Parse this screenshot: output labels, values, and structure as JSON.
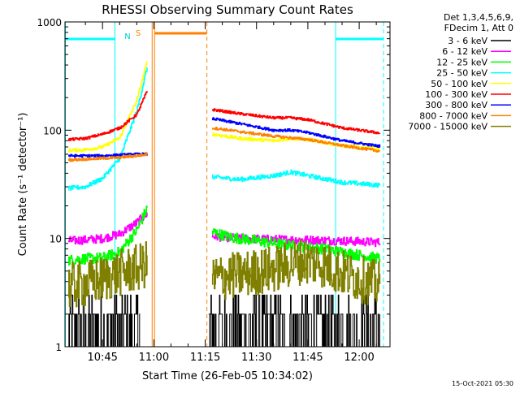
{
  "chart_data": {
    "type": "line",
    "title": "RHESSI Observing Summary Count Rates",
    "xlabel": "Start Time (26-Feb-05 10:34:02)",
    "ylabel": "Count Rate (s⁻¹ detector⁻¹)",
    "yscale": "log",
    "ylim": [
      1,
      1000
    ],
    "xlim": [
      "10:34:02",
      "12:09:00"
    ],
    "y_ticks": [
      "1",
      "10",
      "100",
      "1000"
    ],
    "x_ticks": [
      {
        "label": "10:45",
        "t": 45
      },
      {
        "label": "11:00",
        "t": 60
      },
      {
        "label": "11:15",
        "t": 75
      },
      {
        "label": "11:30",
        "t": 90
      },
      {
        "label": "11:45",
        "t": 105
      },
      {
        "label": "12:00",
        "t": 120
      }
    ],
    "legend_header": [
      "Det 1,3,4,5,6,9,",
      "FDecim 1, Att 0"
    ],
    "legend_position": "top-right, outside plot",
    "flag_labels": {
      "night": "N",
      "saa": "S"
    },
    "flags": {
      "night": [
        [
          34.0,
          48.5
        ],
        [
          113.0,
          127.0
        ]
      ],
      "saa_top": [
        [
          60.2,
          75.5
        ]
      ],
      "cyan_verticals": [
        34.0,
        48.5,
        113.0
      ],
      "cyan_dashed": [
        48.5,
        127.0
      ],
      "orange_verticals": [
        59.5,
        60.2
      ],
      "orange_dashed": [
        75.5
      ]
    },
    "timestamp": "15-Oct-2021 05:30",
    "series": [
      {
        "name": "3 - 6 keV",
        "color": "#000000",
        "segments": [
          {
            "t": [
              35,
              40,
              45,
              50,
              56
            ],
            "y": [
              1.8,
              1.8,
              1.8,
              1.8,
              1.8
            ],
            "noise": 0.28
          },
          {
            "t": [
              76,
              85,
              95,
              105,
              115,
              126
            ],
            "y": [
              1.8,
              1.8,
              2.0,
              2.0,
              1.9,
              1.8
            ],
            "noise": 0.28
          }
        ]
      },
      {
        "name": "6 - 12 keV",
        "color": "#ff00ff",
        "segments": [
          {
            "t": [
              35,
              40,
              45,
              50,
              55,
              58
            ],
            "y": [
              9.5,
              9.7,
              10,
              11,
              14,
              17
            ],
            "noise": 0.04
          },
          {
            "t": [
              77,
              85,
              95,
              105,
              115,
              126
            ],
            "y": [
              10.5,
              10,
              9.8,
              9.7,
              9.5,
              9.2
            ],
            "noise": 0.04
          }
        ]
      },
      {
        "name": "12 - 25 keV",
        "color": "#00ff00",
        "segments": [
          {
            "t": [
              35,
              40,
              45,
              50,
              55,
              58
            ],
            "y": [
              6.3,
              6.5,
              6.6,
              7.5,
              12,
              19
            ],
            "noise": 0.05
          },
          {
            "t": [
              77,
              82,
              90,
              100,
              110,
              118,
              126
            ],
            "y": [
              11.5,
              10.3,
              9.5,
              8.6,
              8,
              7.2,
              6.5
            ],
            "noise": 0.05
          }
        ]
      },
      {
        "name": "25 - 50 keV",
        "color": "#00ffff",
        "segments": [
          {
            "t": [
              35,
              40,
              45,
              50,
              55,
              58
            ],
            "y": [
              29,
              30,
              36,
              55,
              150,
              380
            ],
            "noise": 0.02
          },
          {
            "t": [
              77,
              85,
              95,
              100,
              105,
              115,
              126
            ],
            "y": [
              37,
              35,
              38,
              41,
              38,
              33,
              31
            ],
            "noise": 0.02
          }
        ]
      },
      {
        "name": "50 - 100 keV",
        "color": "#ffff00",
        "segments": [
          {
            "t": [
              35,
              40,
              45,
              50,
              55,
              58
            ],
            "y": [
              65,
              66,
              70,
              85,
              190,
              430
            ],
            "noise": 0.015
          },
          {
            "t": [
              77,
              85,
              95,
              100,
              105,
              115,
              126
            ],
            "y": [
              92,
              84,
              80,
              84,
              82,
              72,
              67
            ],
            "noise": 0.015
          }
        ]
      },
      {
        "name": "100 - 300 keV",
        "color": "#ff0000",
        "segments": [
          {
            "t": [
              35,
              40,
              45,
              50,
              55,
              58
            ],
            "y": [
              82,
              84,
              92,
              105,
              140,
              230
            ],
            "noise": 0.012
          },
          {
            "t": [
              77,
              85,
              95,
              100,
              105,
              115,
              126
            ],
            "y": [
              155,
              142,
              130,
              130,
              125,
              105,
              94
            ],
            "noise": 0.012
          }
        ]
      },
      {
        "name": "300 - 800 keV",
        "color": "#0000ff",
        "segments": [
          {
            "t": [
              35,
              40,
              45,
              50,
              55,
              58
            ],
            "y": [
              58,
              58,
              58,
              59,
              60,
              60
            ],
            "noise": 0.012
          },
          {
            "t": [
              77,
              85,
              95,
              100,
              105,
              115,
              126
            ],
            "y": [
              128,
              115,
              100,
              100,
              95,
              80,
              71
            ],
            "noise": 0.012
          }
        ]
      },
      {
        "name": "800 - 7000 keV",
        "color": "#ff8000",
        "segments": [
          {
            "t": [
              35,
              40,
              45,
              50,
              55,
              58
            ],
            "y": [
              53,
              54,
              55,
              56,
              58,
              60
            ],
            "noise": 0.012
          },
          {
            "t": [
              77,
              85,
              95,
              100,
              105,
              115,
              126
            ],
            "y": [
              105,
              97,
              88,
              85,
              82,
              72,
              64
            ],
            "noise": 0.012
          }
        ]
      },
      {
        "name": "7000 - 15000 keV",
        "color": "#808000",
        "segments": [
          {
            "t": [
              35,
              40,
              45,
              50,
              55,
              58
            ],
            "y": [
              3.6,
              3.8,
              4.2,
              4.8,
              5.3,
              5.8
            ],
            "noise": 0.22
          },
          {
            "t": [
              77,
              85,
              95,
              103,
              108,
              115,
              126
            ],
            "y": [
              4.3,
              4.6,
              5.2,
              6.2,
              6.0,
              4.8,
              3.7
            ],
            "noise": 0.22
          }
        ]
      }
    ]
  }
}
